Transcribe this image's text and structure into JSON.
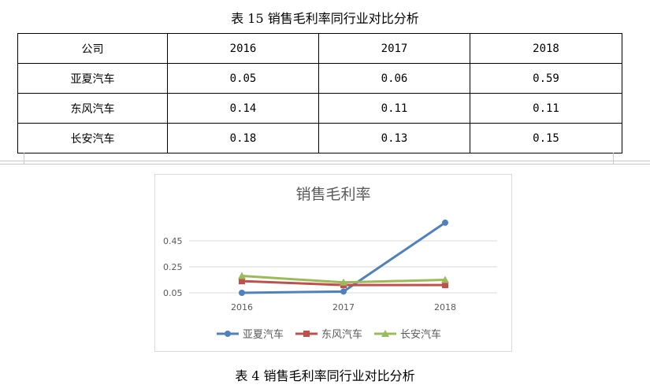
{
  "table_caption": "表 15 销售毛利率同行业对比分析",
  "figure_caption": "表 4 销售毛利率同行业对比分析",
  "table": {
    "header": [
      "公司",
      "2016",
      "2017",
      "2018"
    ],
    "rows": [
      [
        "亚夏汽车",
        "0.05",
        "0.06",
        "0.59"
      ],
      [
        "东风汽车",
        "0.14",
        "0.11",
        "0.11"
      ],
      [
        "长安汽车",
        "0.18",
        "0.13",
        "0.15"
      ]
    ]
  },
  "chart_data": {
    "type": "line",
    "title": "销售毛利率",
    "categories": [
      "2016",
      "2017",
      "2018"
    ],
    "yticks": [
      "0.05",
      "0.25",
      "0.45"
    ],
    "ylim": [
      0.05,
      0.65
    ],
    "grid": true,
    "legend_position": "bottom",
    "series": [
      {
        "name": "亚夏汽车",
        "values": [
          0.05,
          0.06,
          0.59
        ],
        "color": "#4f81bd",
        "marker": "circle"
      },
      {
        "name": "东风汽车",
        "values": [
          0.14,
          0.11,
          0.11
        ],
        "color": "#c0504d",
        "marker": "square"
      },
      {
        "name": "长安汽车",
        "values": [
          0.18,
          0.13,
          0.15
        ],
        "color": "#9bbb59",
        "marker": "triangle"
      }
    ]
  }
}
